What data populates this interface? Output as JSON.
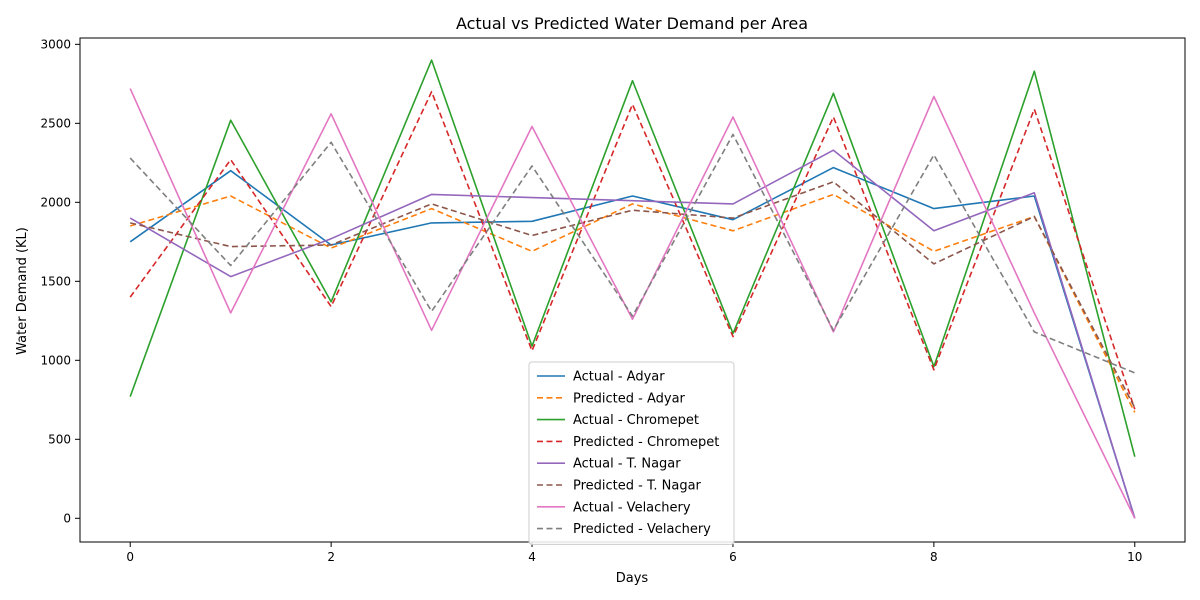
{
  "chart_data": {
    "type": "line",
    "title": "Actual vs Predicted Water Demand per Area",
    "xlabel": "Days",
    "ylabel": "Water Demand (KL)",
    "x": [
      0,
      1,
      2,
      3,
      4,
      5,
      6,
      7,
      8,
      9,
      10
    ],
    "xlim": [
      -0.5,
      10.5
    ],
    "ylim": [
      -150,
      3040
    ],
    "xticks": [
      0,
      2,
      4,
      6,
      8,
      10
    ],
    "yticks": [
      0,
      500,
      1000,
      1500,
      2000,
      2500,
      3000
    ],
    "grid": false,
    "legend_position": "lower center",
    "series": [
      {
        "name": "Actual - Adyar",
        "color": "#1f77b4",
        "dashed": false,
        "values": [
          1750,
          2200,
          1730,
          1870,
          1880,
          2040,
          1890,
          2220,
          1960,
          2040,
          0
        ]
      },
      {
        "name": "Predicted - Adyar",
        "color": "#ff7f0e",
        "dashed": true,
        "values": [
          1850,
          2040,
          1710,
          1960,
          1690,
          1990,
          1820,
          2050,
          1690,
          1910,
          670
        ]
      },
      {
        "name": "Actual - Chromepet",
        "color": "#2ca02c",
        "dashed": false,
        "values": [
          770,
          2520,
          1370,
          2900,
          1090,
          2770,
          1170,
          2690,
          960,
          2830,
          390
        ]
      },
      {
        "name": "Predicted - Chromepet",
        "color": "#d62728",
        "dashed": true,
        "values": [
          1400,
          2270,
          1340,
          2700,
          1060,
          2620,
          1150,
          2540,
          940,
          2590,
          690
        ]
      },
      {
        "name": "Actual - T. Nagar",
        "color": "#9467bd",
        "dashed": false,
        "values": [
          1900,
          1530,
          1770,
          2050,
          2030,
          2010,
          1990,
          2330,
          1820,
          2060,
          0
        ]
      },
      {
        "name": "Predicted - T. Nagar",
        "color": "#8c564b",
        "dashed": true,
        "values": [
          1870,
          1720,
          1730,
          1990,
          1790,
          1950,
          1900,
          2130,
          1610,
          1910,
          700
        ]
      },
      {
        "name": "Actual - Velachery",
        "color": "#e377c2",
        "dashed": false,
        "values": [
          2720,
          1300,
          2560,
          1190,
          2480,
          1260,
          2540,
          1180,
          2670,
          1300,
          0
        ]
      },
      {
        "name": "Predicted - Velachery",
        "color": "#7f7f7f",
        "dashed": true,
        "values": [
          2280,
          1600,
          2380,
          1310,
          2230,
          1280,
          2430,
          1190,
          2300,
          1180,
          920
        ]
      }
    ]
  }
}
